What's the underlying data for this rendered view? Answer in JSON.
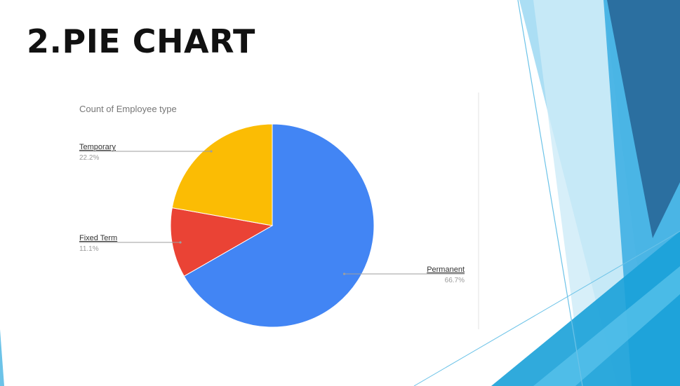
{
  "slide": {
    "title": "2.PIE CHART"
  },
  "colors": {
    "permanent": "#4285F4",
    "fixed_term": "#EA4335",
    "temporary": "#FBBC04",
    "deco_light": "#8fd3f0",
    "deco_mid": "#3fb0e3",
    "deco_dark": "#2b6fa0"
  },
  "chart_data": {
    "type": "pie",
    "title": "Count of Employee type",
    "slices": [
      {
        "name": "Permanent",
        "value": 66.7,
        "label": "66.7%",
        "color": "#4285F4"
      },
      {
        "name": "Fixed Term",
        "value": 11.1,
        "label": "11.1%",
        "color": "#EA4335"
      },
      {
        "name": "Temporary",
        "value": 22.2,
        "label": "22.2%",
        "color": "#FBBC04"
      }
    ],
    "start_angle": "12 o'clock, clockwise",
    "legend": "none (leader-line labels)"
  }
}
